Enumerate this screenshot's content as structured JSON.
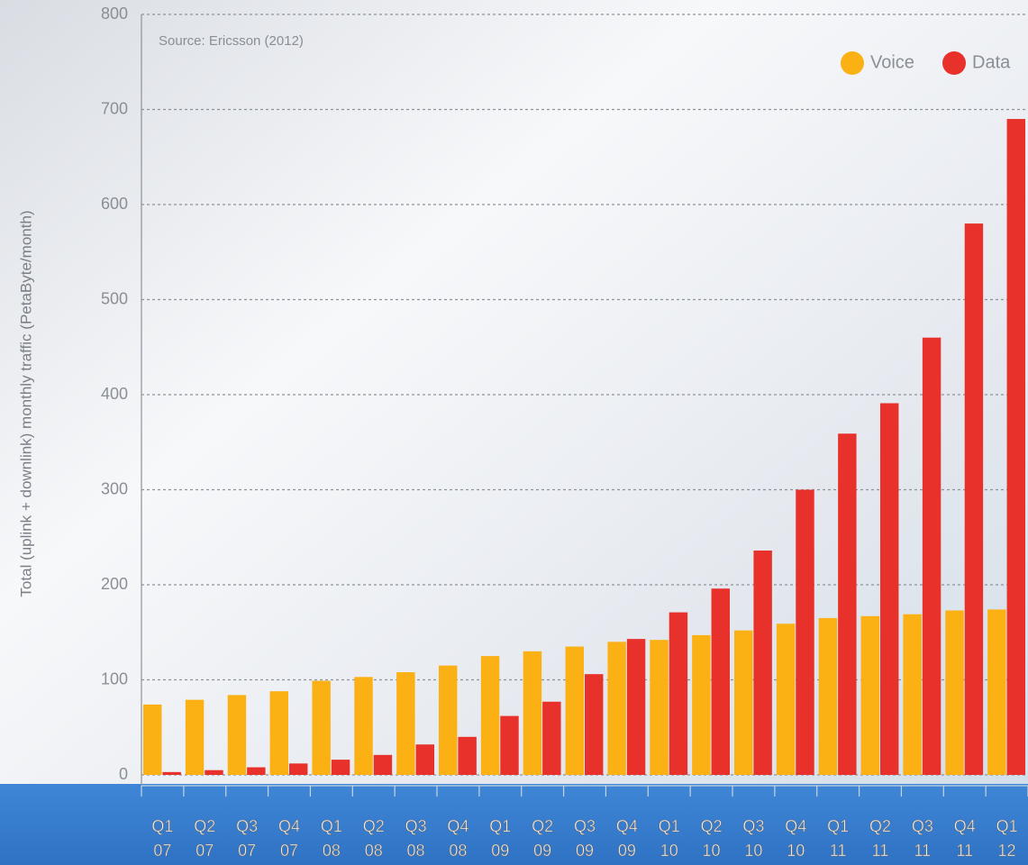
{
  "chart_data": {
    "type": "bar",
    "annotation": "Source: Ericsson (2012)",
    "ylabel": "Total (uplink + downlink) monthly traffic (PetaByte/month)",
    "categories": [
      [
        "Q1",
        "07"
      ],
      [
        "Q2",
        "07"
      ],
      [
        "Q3",
        "07"
      ],
      [
        "Q4",
        "07"
      ],
      [
        "Q1",
        "08"
      ],
      [
        "Q2",
        "08"
      ],
      [
        "Q3",
        "08"
      ],
      [
        "Q4",
        "08"
      ],
      [
        "Q1",
        "09"
      ],
      [
        "Q2",
        "09"
      ],
      [
        "Q3",
        "09"
      ],
      [
        "Q4",
        "09"
      ],
      [
        "Q1",
        "10"
      ],
      [
        "Q2",
        "10"
      ],
      [
        "Q3",
        "10"
      ],
      [
        "Q4",
        "10"
      ],
      [
        "Q1",
        "11"
      ],
      [
        "Q2",
        "11"
      ],
      [
        "Q3",
        "11"
      ],
      [
        "Q4",
        "11"
      ],
      [
        "Q1",
        "12"
      ]
    ],
    "series": [
      {
        "name": "Voice",
        "color": "#fbb014",
        "values": [
          74,
          79,
          84,
          88,
          99,
          103,
          108,
          115,
          125,
          130,
          135,
          140,
          142,
          147,
          152,
          159,
          165,
          167,
          169,
          173,
          174
        ]
      },
      {
        "name": "Data",
        "color": "#e8312a",
        "values": [
          3,
          5,
          8,
          12,
          16,
          21,
          32,
          40,
          62,
          77,
          106,
          143,
          171,
          196,
          236,
          300,
          359,
          391,
          460,
          580,
          690
        ]
      }
    ],
    "ylim": [
      0,
      800
    ],
    "yticks": [
      0,
      100,
      200,
      300,
      400,
      500,
      600,
      700,
      800
    ],
    "grid": true,
    "legend": "upper right"
  }
}
